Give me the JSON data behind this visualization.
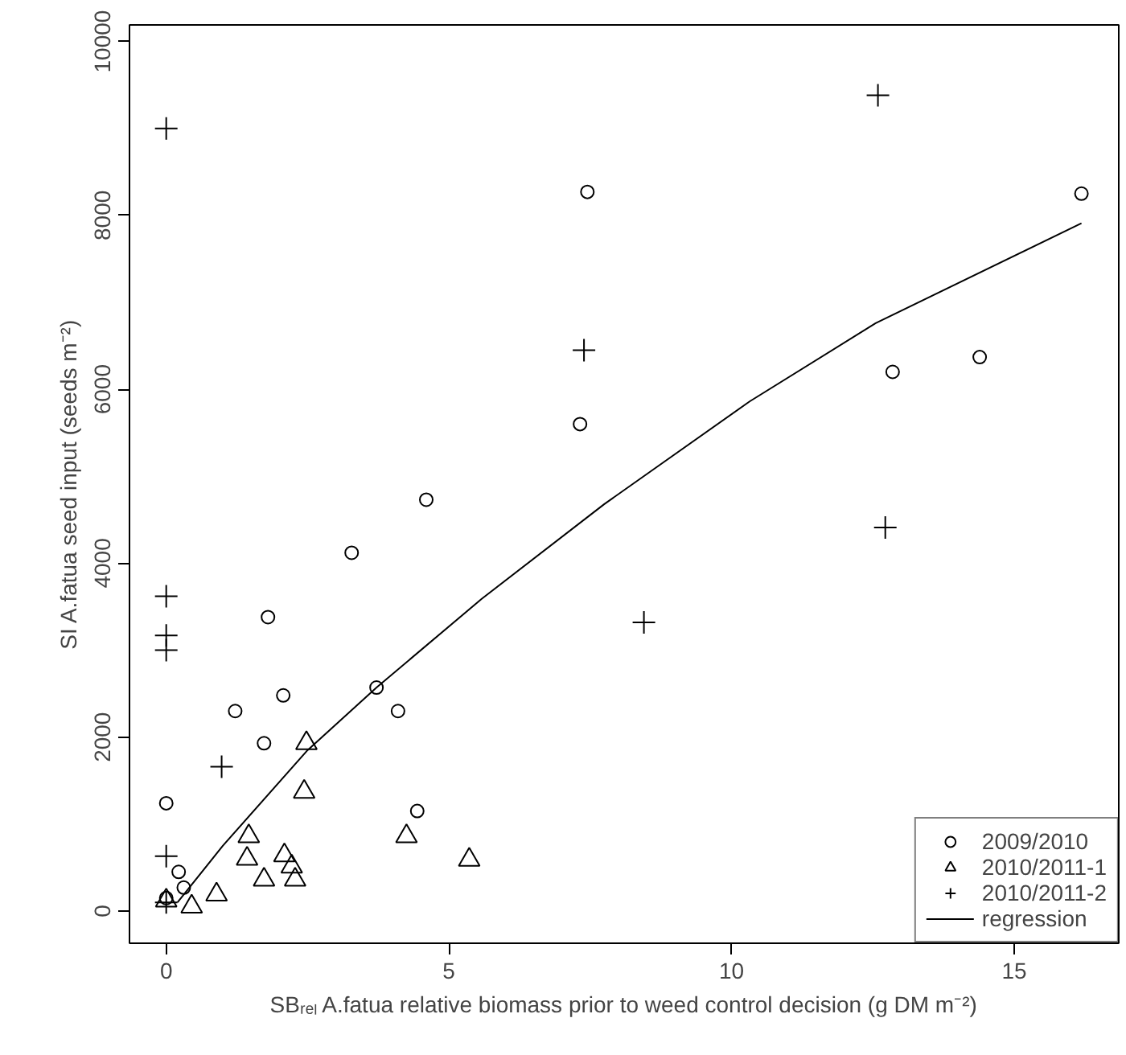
{
  "chart_data": {
    "type": "scatter",
    "xlabel": "SBᵣₑₗ A.fatua relative biomass prior to weed control decision (g DM m⁻²)",
    "ylabel": "SI A.fatua seed input (seeds m⁻²)",
    "xlim": [
      -0.65,
      16.85
    ],
    "ylim": [
      -370,
      10190
    ],
    "xticks": [
      0,
      5,
      10,
      15
    ],
    "yticks": [
      0,
      2000,
      4000,
      6000,
      8000,
      10000
    ],
    "grid": false,
    "legend": "bottom right",
    "series": [
      {
        "name": "2009/2010",
        "color": "#000000",
        "marker": "circle",
        "x": [
          7.45,
          16.19,
          12.85,
          14.39,
          7.32,
          4.6,
          3.28,
          1.8,
          2.07,
          1.22,
          3.72,
          4.1,
          1.73,
          0,
          4.44,
          0.22,
          0.31,
          0
        ],
        "values": [
          8270,
          8250,
          6200,
          6370,
          5600,
          4730,
          4120,
          3380,
          2480,
          2300,
          2570,
          2300,
          1930,
          1240,
          1150,
          450,
          270,
          150
        ]
      },
      {
        "name": "2010/2011-1",
        "color": "#000000",
        "marker": "triangle",
        "x": [
          2.48,
          2.44,
          1.46,
          4.25,
          1.43,
          5.36,
          2.09,
          2.22,
          1.73,
          2.28,
          0.89,
          0.45,
          0
        ],
        "values": [
          1930,
          1370,
          860,
          860,
          600,
          590,
          640,
          510,
          360,
          360,
          190,
          50,
          120
        ]
      },
      {
        "name": "2010/2011-2",
        "color": "#000000",
        "marker": "cross",
        "x": [
          0,
          12.59,
          7.39,
          12.72,
          8.45,
          0,
          0,
          0,
          0.98,
          0,
          0
        ],
        "values": [
          9000,
          9380,
          6450,
          4410,
          3320,
          3620,
          3170,
          3000,
          1660,
          630,
          100
        ]
      },
      {
        "name": "regression",
        "type": "line",
        "color": "#000000",
        "line_style": "solid",
        "marker": "none",
        "x": [
          0.2,
          1,
          2.5,
          3.72,
          5.58,
          7.75,
          10.32,
          12.55,
          16.19
        ],
        "values": [
          100,
          750,
          1850,
          2570,
          3590,
          4680,
          5860,
          6760,
          7910
        ]
      }
    ]
  }
}
